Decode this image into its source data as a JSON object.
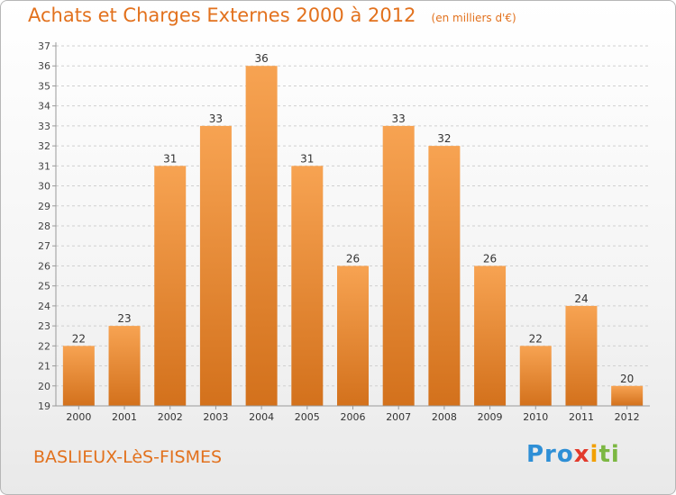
{
  "title": "Achats et Charges Externes 2000 à 2012",
  "subtitle": "(en milliers d'€)",
  "place": "BASLIEUX-LèS-FISMES",
  "logo": {
    "p1": "Pro",
    "p2": "x",
    "p3": "i",
    "p4": "ti"
  },
  "colors": {
    "bar_light": "#f7a352",
    "bar_dark": "#d3711c",
    "title": "#e2711d",
    "axis": "#9a9a9a",
    "grid": "#d0d0d0"
  },
  "chart_data": {
    "type": "bar",
    "categories": [
      "2000",
      "2001",
      "2002",
      "2003",
      "2004",
      "2005",
      "2006",
      "2007",
      "2008",
      "2009",
      "2010",
      "2011",
      "2012"
    ],
    "values": [
      22,
      23,
      31,
      33,
      36,
      31,
      26,
      33,
      32,
      26,
      22,
      24,
      20
    ],
    "title": "Achats et Charges Externes 2000 à 2012",
    "xlabel": "",
    "ylabel": "",
    "ylim": [
      19,
      37
    ],
    "yticks": [
      19,
      20,
      21,
      22,
      23,
      24,
      25,
      26,
      27,
      28,
      29,
      30,
      31,
      32,
      33,
      34,
      35,
      36,
      37
    ],
    "grid": true,
    "data_labels": true
  }
}
